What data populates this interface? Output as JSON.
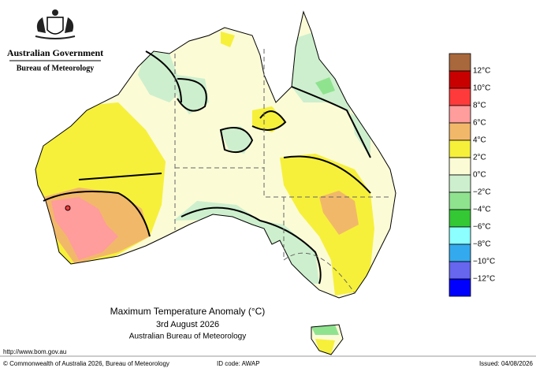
{
  "header": {
    "government": "Australian Government",
    "agency": "Bureau of Meteorology"
  },
  "title": {
    "line1": "Maximum Temperature Anomaly (°C)",
    "line2": "3rd August 2026",
    "line3": "Australian Bureau of Meteorology"
  },
  "legend": {
    "colors": [
      "#a8683c",
      "#c80000",
      "#ff3a3a",
      "#ff9c9c",
      "#f2b86a",
      "#f6f03a",
      "#fbfbd6",
      "#cdefcd",
      "#8fe38f",
      "#34c834",
      "#8cffff",
      "#33aaee",
      "#6666ee",
      "#0000ff"
    ],
    "labels": [
      "12°C",
      "10°C",
      "8°C",
      "6°C",
      "4°C",
      "2°C",
      "0°C",
      "−2°C",
      "−4°C",
      "−6°C",
      "−8°C",
      "−10°C",
      "−12°C"
    ]
  },
  "footer": {
    "url": "http://www.bom.gov.au",
    "copyright": "© Commonwealth of Australia 2026, Bureau of Meteorology",
    "id_code": "ID code: AWAP",
    "issued": "Issued: 04/08/2026"
  }
}
